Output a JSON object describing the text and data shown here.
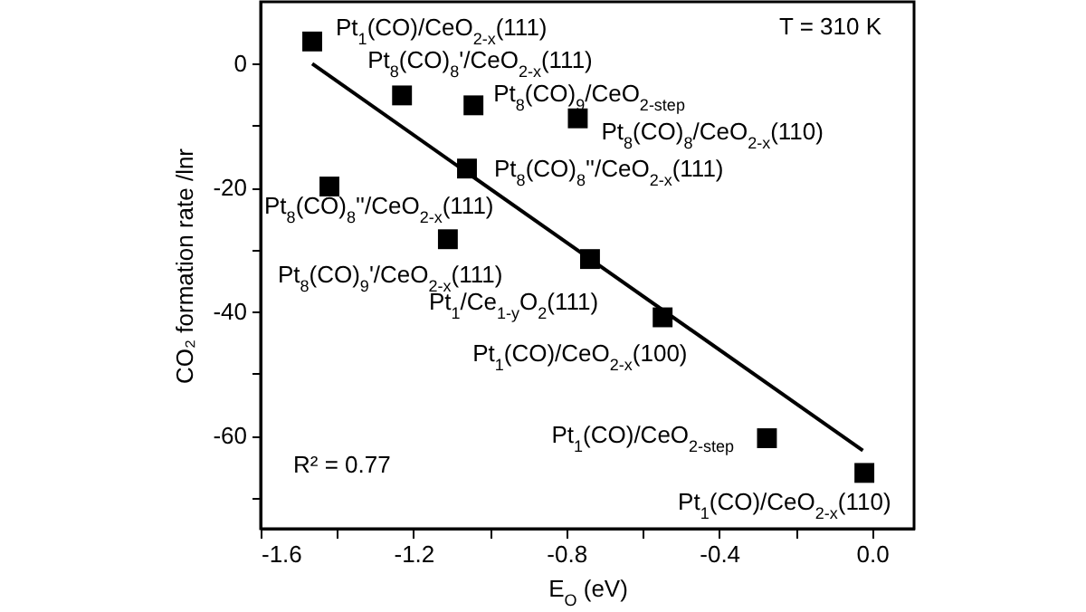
{
  "chart_data": {
    "type": "scatter",
    "xlabel": "E$_{O}$ (eV)",
    "ylabel": "CO₂ formation rate /lnr",
    "xlim": [
      -1.6,
      0.11
    ],
    "ylim": [
      -75,
      10
    ],
    "xticks": [
      -1.6,
      {
        "value": -1.4,
        "label": null
      },
      -1.2,
      {
        "value": -1.0,
        "label": null
      },
      -0.8,
      {
        "value": -0.6,
        "label": null
      },
      -0.4,
      {
        "value": -0.2,
        "label": null
      },
      {
        "value": 0,
        "label": "0.0"
      }
    ],
    "yticks": [
      {
        "value": -70,
        "label": null
      },
      -60,
      {
        "value": -50,
        "label": null
      },
      -40,
      {
        "value": -30,
        "label": null
      },
      -20,
      {
        "value": -10,
        "label": null
      },
      0
    ],
    "grid": false,
    "series": [
      {
        "marker": "square",
        "color": "#000000",
        "x": [
          -1.465,
          -1.23,
          -1.043,
          -0.77,
          -1.06,
          -1.42,
          -1.11,
          -0.738,
          -0.548,
          -0.275,
          -0.02
        ],
        "values": [
          3.6,
          -5.1,
          -6.7,
          -8.8,
          -16.9,
          -19.8,
          -28.3,
          -31.5,
          -40.9,
          -60.4,
          -66
        ],
        "value_labels": [
          "Pt$_{1}$(CO)/CeO$_{2-x}$(111)",
          "Pt$_{8}$(CO)$_{8}$'/CeO$_{2-x}$(111)",
          "Pt$_{8}$(CO)$_{9}$/CeO$_{2-step}$",
          "Pt$_{8}$(CO)$_{8}$/CeO$_{2-x}$(110)",
          "Pt$_{8}$(CO)$_{8}$''/CeO$_{2-x}$(111)",
          "Pt$_{8}$(CO)$_{8}$''/CeO$_{2-x}$(111)",
          "Pt$_{8}$(CO)$_{9}$'/CeO$_{2-x}$(111)",
          "Pt$_{1}$/Ce$_{1-y}$O$_{2}$(111)",
          "Pt$_{1}$(CO)/CeO$_{2-x}$(100)",
          "Pt$_{1}$(CO)/CeO$_{2-step}$",
          "Pt$_{1}$(CO)/CeO$_{2-x}$(110)"
        ]
      },
      {
        "type": "line",
        "color": "#000000",
        "x": [
          -1.465,
          -0.024
        ],
        "values": [
          0,
          -62.4
        ]
      }
    ],
    "annotations": [
      "T = 310 K",
      "R² = 0.77"
    ]
  }
}
